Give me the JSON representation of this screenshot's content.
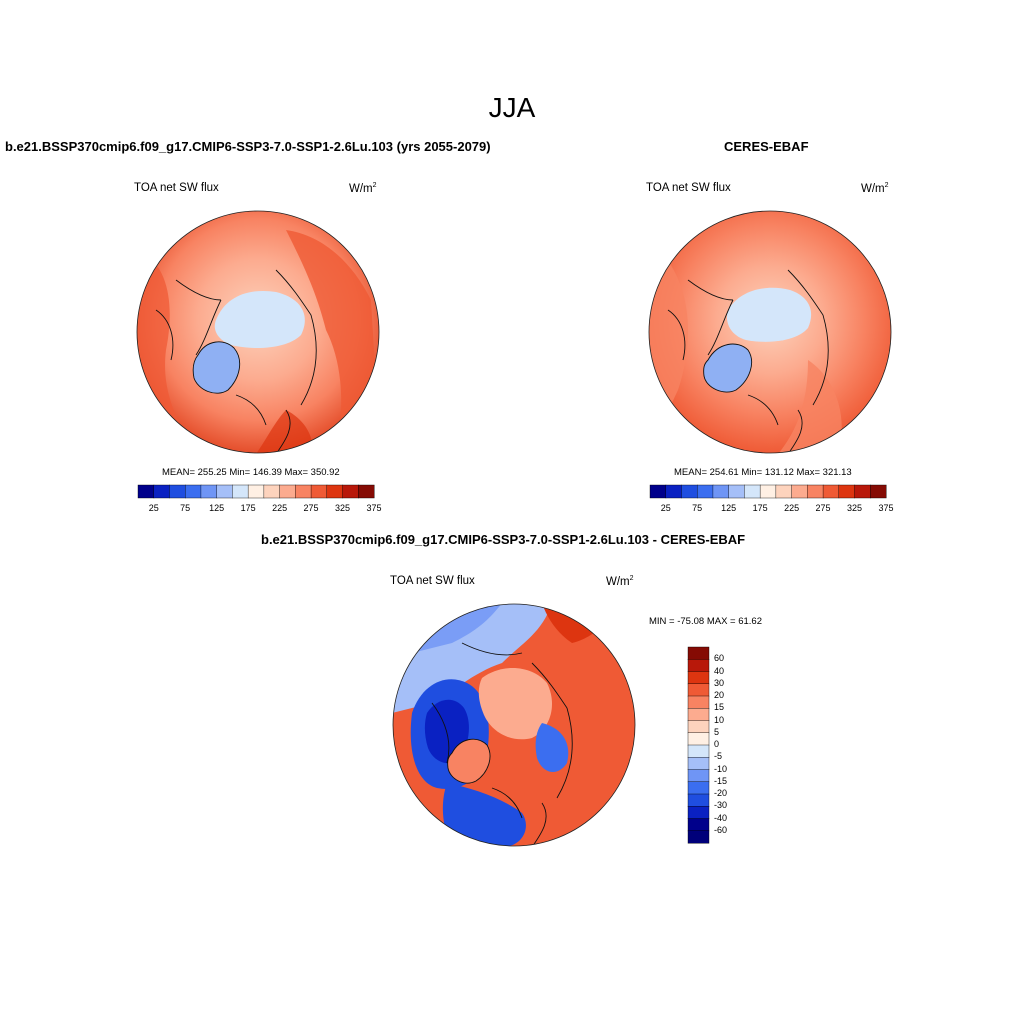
{
  "figure": {
    "season": "JJA"
  },
  "panels": [
    {
      "id": "model",
      "title": "b.e21.BSSP370cmip6.f09_g17.CMIP6-SSP3-7.0-SSP1-2.6Lu.103 (yrs 2055-2079)",
      "left_label": "TOA net SW flux",
      "units": "W/m",
      "units_sup": "2",
      "stats": "MEAN= 255.25  Min= 146.39  Max= 350.92",
      "stats_values": {
        "mean": 255.25,
        "min": 146.39,
        "max": 350.92
      }
    },
    {
      "id": "obs",
      "title": "CERES-EBAF",
      "left_label": "TOA net SW flux",
      "units": "W/m",
      "units_sup": "2",
      "stats": "MEAN= 254.61  Min= 131.12  Max= 321.13",
      "stats_values": {
        "mean": 254.61,
        "min": 131.12,
        "max": 321.13
      }
    },
    {
      "id": "diff",
      "title": "b.e21.BSSP370cmip6.f09_g17.CMIP6-SSP3-7.0-SSP1-2.6Lu.103 - CERES-EBAF",
      "left_label": "TOA net SW flux",
      "units": "W/m",
      "units_sup": "2",
      "stats": "MIN = -75.08 MAX =  61.62",
      "stats_values": {
        "min": -75.08,
        "max": 61.62
      }
    }
  ],
  "colorbar_abs": {
    "tick_labels": [
      "25",
      "75",
      "125",
      "175",
      "225",
      "275",
      "325",
      "375"
    ],
    "colors": [
      "#00008b",
      "#0a21c2",
      "#1f4ee0",
      "#3b6ef0",
      "#6f95f5",
      "#a5bff8",
      "#d4e6fa",
      "#fff0e4",
      "#fdd3bd",
      "#fcab8f",
      "#f88362",
      "#ef5a35",
      "#dd3510",
      "#b8180a",
      "#850b04"
    ]
  },
  "colorbar_diff": {
    "tick_labels": [
      "60",
      "40",
      "30",
      "20",
      "15",
      "10",
      "5",
      "0",
      "-5",
      "-10",
      "-15",
      "-20",
      "-30",
      "-40",
      "-60"
    ],
    "colors": [
      "#850b04",
      "#b8180a",
      "#dd3510",
      "#ef5a35",
      "#f88362",
      "#fcab8f",
      "#fdd3bd",
      "#fff0e4",
      "#d4e6fa",
      "#a5bff8",
      "#6f95f5",
      "#3b6ef0",
      "#1f4ee0",
      "#0a21c2",
      "#00008b",
      "#00007a"
    ]
  },
  "map_colors": {
    "ocean_low": "#f4a582",
    "ocean_mid": "#ef6a45",
    "ocean_high": "#d9411e",
    "ice": "#d6e7fa",
    "greenland": "#8fb0f3",
    "diff_blue": "#1f4ee0",
    "diff_deep": "#0a21c2",
    "diff_light": "#a5bff8",
    "diff_red": "#ef5a35",
    "diff_peach": "#fcab8f"
  }
}
